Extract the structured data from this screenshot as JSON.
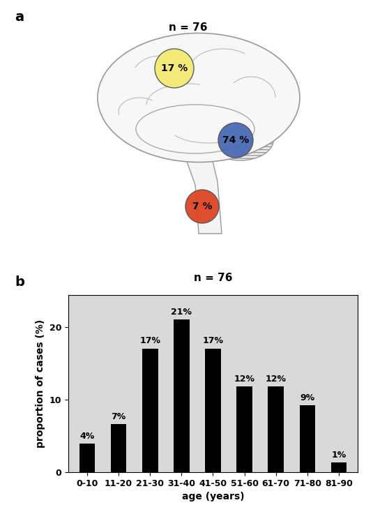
{
  "chart_data": [
    {
      "panel": "a",
      "type": "anatomy",
      "title": "n = 76",
      "values": [
        17,
        74,
        7
      ],
      "value_labels": [
        "17 %",
        "74 %",
        "7 %"
      ],
      "colors": [
        "#f4ea72",
        "#4a6ab3",
        "#dc4522"
      ],
      "data_labels": true
    },
    {
      "panel": "b",
      "type": "bar",
      "title": "n = 76",
      "categories": [
        "0-10",
        "11-20",
        "21-30",
        "31-40",
        "41-50",
        "51-60",
        "61-70",
        "71-80",
        "81-90"
      ],
      "values": [
        3.9,
        6.6,
        17.1,
        21.1,
        17.1,
        11.8,
        11.8,
        9.2,
        1.3
      ],
      "value_labels": [
        "4%",
        "7%",
        "17%",
        "21%",
        "17%",
        "12%",
        "12%",
        "9%",
        "1%"
      ],
      "data_labels": true,
      "color": "#000000",
      "x_label": "age (years)",
      "y_label": "proportion of cases (%)",
      "ylim": [
        0,
        24.5
      ],
      "yticks": [
        0,
        10,
        20
      ],
      "grid": false
    }
  ]
}
